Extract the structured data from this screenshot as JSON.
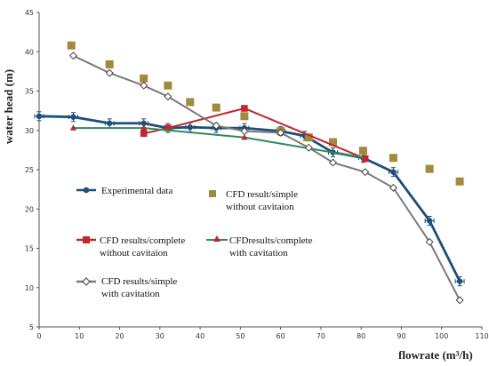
{
  "chart_data": {
    "type": "line",
    "xlabel": "flowrate (m³/h)",
    "ylabel": "water head (m)",
    "xlim": [
      0,
      110
    ],
    "ylim": [
      5,
      45
    ],
    "xticks": [
      0,
      10,
      20,
      30,
      40,
      50,
      60,
      70,
      80,
      90,
      100,
      110
    ],
    "yticks": [
      5,
      10,
      15,
      20,
      25,
      30,
      35,
      40,
      45
    ],
    "grid": false,
    "series": [
      {
        "name": "Experimental data",
        "kind": "line-marker",
        "marker": "circle",
        "color": "#1f4e79",
        "error_bars": true,
        "x": [
          0,
          8.5,
          17.5,
          26,
          32,
          37.5,
          44,
          51,
          60,
          66,
          73,
          80.5,
          88,
          97,
          104.5
        ],
        "y": [
          31.8,
          31.7,
          30.9,
          30.9,
          30.3,
          30.4,
          30.3,
          30.3,
          29.9,
          29.3,
          27.2,
          26.5,
          24.7,
          18.5,
          10.8
        ]
      },
      {
        "name": "CFD result/simple without cavitaion",
        "kind": "marker-only",
        "marker": "square",
        "color": "#a08a3c",
        "x": [
          8,
          17.5,
          26,
          32,
          37.5,
          44,
          51,
          60,
          67,
          73,
          80.5,
          88,
          97,
          104.5
        ],
        "y": [
          40.8,
          38.4,
          36.6,
          35.7,
          33.6,
          32.9,
          31.8,
          29.9,
          29.1,
          28.5,
          27.4,
          26.5,
          25.1,
          23.5
        ]
      },
      {
        "name": "CFD results/complete without cavitaion",
        "kind": "line-marker",
        "marker": "square",
        "color": "#c0272d",
        "x": [
          26,
          32,
          51,
          81
        ],
        "y": [
          29.6,
          30.3,
          32.8,
          26.4
        ]
      },
      {
        "name": "CFDresults/complete with cavitation",
        "kind": "line-marker",
        "marker": "triangle",
        "color": "#2e8b57",
        "x": [
          8.5,
          26,
          51,
          81
        ],
        "y": [
          30.3,
          30.3,
          29.1,
          26.5
        ]
      },
      {
        "name": "CFD results/simple with cavitation",
        "kind": "line-marker",
        "marker": "open-diamond",
        "color": "#7a7a7a",
        "x": [
          8.5,
          17.5,
          26,
          32,
          44,
          51,
          60,
          67,
          73,
          81,
          88,
          97,
          104.5
        ],
        "y": [
          39.5,
          37.3,
          35.7,
          34.3,
          30.6,
          29.9,
          29.7,
          27.8,
          25.9,
          24.7,
          22.7,
          15.8,
          8.4
        ]
      }
    ],
    "legend": [
      "Experimental data",
      "CFD result/simple",
      "without cavitaion",
      "CFD results/complete",
      "without cavitaion",
      "CFDresults/complete",
      "with cavitation",
      "CFD results/simple",
      "with cavitation"
    ]
  }
}
